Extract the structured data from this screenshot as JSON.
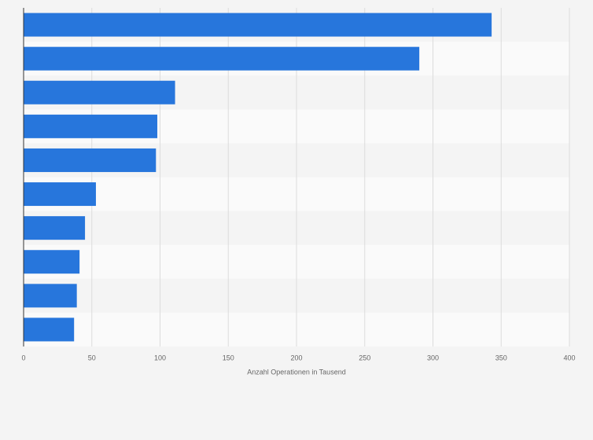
{
  "chart_data": {
    "type": "bar",
    "orientation": "horizontal",
    "x_label": "Anzahl Operationen in Tausend",
    "categories": [
      null,
      null,
      null,
      null,
      null,
      null,
      null,
      null,
      null,
      null
    ],
    "values": [
      343,
      290,
      111,
      98,
      97,
      53,
      45,
      41,
      39,
      37
    ],
    "color": "#2776dc",
    "xlim": [
      0,
      400
    ],
    "xticks": [
      0,
      50,
      100,
      150,
      200,
      250,
      300,
      350,
      400
    ],
    "grid": true
  }
}
